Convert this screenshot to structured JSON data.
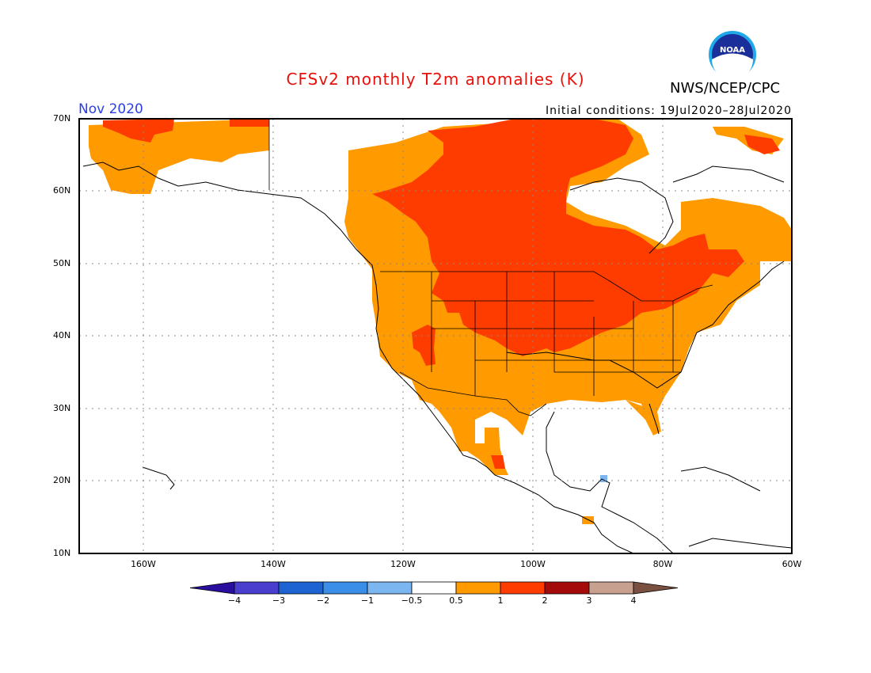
{
  "title": "CFSv2 monthly T2m anomalies (K)",
  "agency": "NWS/NCEP/CPC",
  "logo": {
    "text": "NOAA"
  },
  "month": "Nov 2020",
  "initial_conditions": "Initial conditions: 19Jul2020–28Jul2020",
  "lat_labels": [
    "70N",
    "60N",
    "50N",
    "40N",
    "30N",
    "20N",
    "10N"
  ],
  "lon_labels": [
    "160W",
    "140W",
    "120W",
    "100W",
    "80W",
    "60W"
  ],
  "colorbar": {
    "labels": [
      "−4",
      "−3",
      "−2",
      "−1",
      "−0.5",
      "0.5",
      "1",
      "2",
      "3",
      "4"
    ],
    "colors": [
      "#2a0f9e",
      "#4a3ecf",
      "#1e63d2",
      "#3a8ee8",
      "#7cb6f0",
      "#ffffff",
      "#ff9a00",
      "#ff3c00",
      "#a50a0a",
      "#c8a090",
      "#7a5040"
    ]
  },
  "colors": {
    "anomaly_05_1": "#ff9a00",
    "anomaly_1_2": "#ff3c00",
    "anomaly_neg": "#7cb6f0",
    "title": "#e8100a",
    "month": "#2a40e6"
  }
}
